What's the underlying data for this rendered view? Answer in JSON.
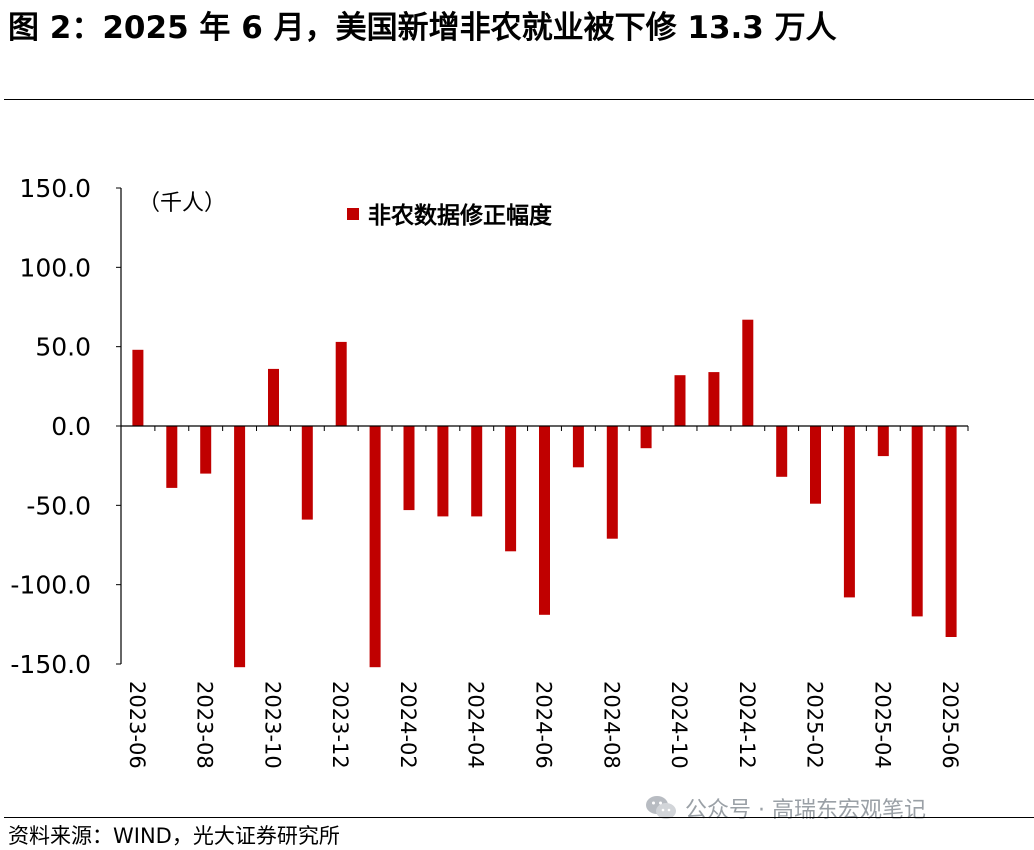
{
  "figure": {
    "title": "图 2：2025 年 6 月，美国新增非农就业被下修 13.3 万人",
    "source": "资料来源：WIND，光大证券研究所",
    "watermark": "公众号 · 高瑞东宏观笔记",
    "watermark_icon": "wechat-icon"
  },
  "chart_data": {
    "type": "bar",
    "unit_label": "（千人）",
    "categories": [
      "2023-06",
      "2023-07",
      "2023-08",
      "2023-09",
      "2023-10",
      "2023-11",
      "2023-12",
      "2024-01",
      "2024-02",
      "2024-03",
      "2024-04",
      "2024-05",
      "2024-06",
      "2024-07",
      "2024-08",
      "2024-09",
      "2024-10",
      "2024-11",
      "2024-12",
      "2025-01",
      "2025-02",
      "2025-03",
      "2025-04",
      "2025-05",
      "2025-06"
    ],
    "tick_labels": [
      "2023-06",
      "2023-08",
      "2023-10",
      "2023-12",
      "2024-02",
      "2024-04",
      "2024-06",
      "2024-08",
      "2024-10",
      "2024-12",
      "2025-02",
      "2025-04",
      "2025-06"
    ],
    "series": [
      {
        "name": "非农数据修正幅度",
        "color": "#c00000",
        "values": [
          48,
          -39,
          -30,
          -152,
          36,
          -59,
          53,
          -152,
          -53,
          -57,
          -57,
          -79,
          -119,
          -26,
          -71,
          -14,
          32,
          34,
          67,
          -32,
          -49,
          -108,
          -19,
          -120,
          -133
        ]
      }
    ],
    "ylim": [
      -150,
      150
    ],
    "yticks": [
      "150.0",
      "100.0",
      "50.0",
      "0.0",
      "-50.0",
      "-100.0",
      "-150.0"
    ],
    "ytick_values": [
      150,
      100,
      50,
      0,
      -50,
      -100,
      -150
    ],
    "legend_position": "top-center",
    "grid": false
  }
}
